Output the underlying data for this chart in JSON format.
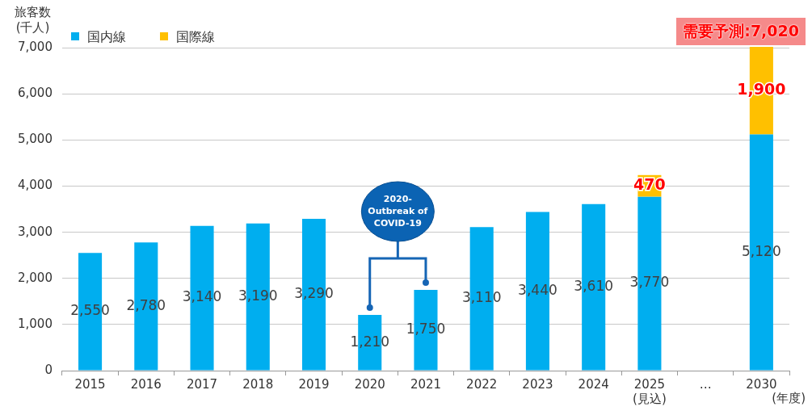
{
  "chart_data": {
    "type": "bar",
    "stacked": true,
    "ylabel": "旅客数\n(千人)",
    "xlabel": "(年度)",
    "categories": [
      "2015",
      "2016",
      "2017",
      "2018",
      "2019",
      "2020",
      "2021",
      "2022",
      "2023",
      "2024",
      "2025\n(見込)",
      "…",
      "2030"
    ],
    "series": [
      {
        "name": "国内線",
        "color": "#00aeef",
        "values": [
          2550,
          2780,
          3140,
          3190,
          3290,
          1210,
          1750,
          3110,
          3440,
          3610,
          3770,
          null,
          5120
        ],
        "value_labels": [
          "2,550",
          "2,780",
          "3,140",
          "3,190",
          "3,290",
          "1,210",
          "1,750",
          "3,110",
          "3,440",
          "3,610",
          "3,770",
          null,
          "5,120"
        ]
      },
      {
        "name": "国際線",
        "color": "#ffc000",
        "values": [
          null,
          null,
          null,
          null,
          null,
          null,
          null,
          null,
          null,
          null,
          470,
          null,
          1900
        ],
        "value_labels": [
          null,
          null,
          null,
          null,
          null,
          null,
          null,
          null,
          null,
          null,
          "470",
          null,
          "1,900"
        ]
      }
    ],
    "ylim": [
      0,
      7020
    ],
    "yticks": [
      {
        "value": 0,
        "label": "0"
      },
      {
        "value": 1000,
        "label": "1,000"
      },
      {
        "value": 2000,
        "label": "2,000"
      },
      {
        "value": 3000,
        "label": "3,000"
      },
      {
        "value": 4000,
        "label": "4,000"
      },
      {
        "value": 5000,
        "label": "5,000"
      },
      {
        "value": 6000,
        "label": "6,000"
      },
      {
        "value": 7000,
        "label": "7,000"
      }
    ],
    "grid": "y",
    "legend": "top left",
    "annotations": [
      "需要予測:7,020",
      "2020-Outbreak of COVID-19"
    ]
  }
}
